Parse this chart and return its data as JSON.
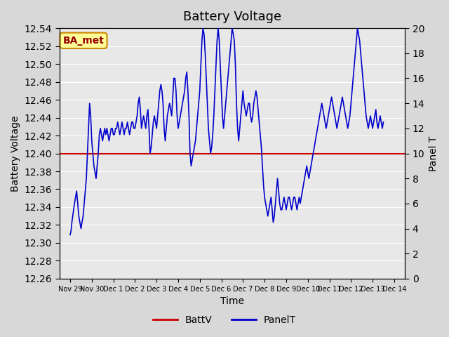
{
  "title": "Battery Voltage",
  "xlabel": "Time",
  "ylabel_left": "Battery Voltage",
  "ylabel_right": "Panel T",
  "xlim_days": 15.5,
  "ylim_left": [
    12.26,
    12.54
  ],
  "ylim_right": [
    0,
    20
  ],
  "batt_v_value": 12.4,
  "background_color": "#e8e8e8",
  "plot_bg_color": "#e8e8e8",
  "line_color_batt": "#cc0000",
  "line_color_panel": "#0000cc",
  "annotation_text": "BA_met",
  "annotation_bg": "#ffff99",
  "annotation_border": "#cc8800",
  "annotation_text_color": "#990000",
  "x_tick_labels": [
    "Nov 29",
    "Nov 30",
    "Dec 1",
    "Dec 2",
    "Dec 3",
    "Dec 4",
    "Dec 5",
    "Dec 6",
    "Dec 7",
    "Dec 8",
    "Dec 9",
    "Dec 10",
    "Dec 11",
    "Dec 12",
    "Dec 13",
    "Dec 14"
  ],
  "yticks_left": [
    12.26,
    12.28,
    12.3,
    12.32,
    12.34,
    12.36,
    12.38,
    12.4,
    12.42,
    12.44,
    12.46,
    12.48,
    12.5,
    12.52,
    12.54
  ],
  "yticks_right": [
    0,
    2,
    4,
    6,
    8,
    10,
    12,
    14,
    16,
    18,
    20
  ],
  "panel_t_data": {
    "x": [
      0,
      0.04,
      0.08,
      0.12,
      0.16,
      0.2,
      0.25,
      0.3,
      0.35,
      0.4,
      0.45,
      0.5,
      0.55,
      0.6,
      0.65,
      0.7,
      0.75,
      0.8,
      0.85,
      0.9,
      0.95,
      1.0,
      1.05,
      1.1,
      1.15,
      1.2,
      1.25,
      1.3,
      1.35,
      1.4,
      1.45,
      1.5,
      1.55,
      1.6,
      1.65,
      1.7,
      1.75,
      1.8,
      1.85,
      1.9,
      1.95,
      2.0,
      2.05,
      2.1,
      2.15,
      2.2,
      2.25,
      2.3,
      2.35,
      2.4,
      2.45,
      2.5,
      2.55,
      2.6,
      2.65,
      2.7,
      2.75,
      2.8,
      2.85,
      2.9,
      2.95,
      3.0,
      3.05,
      3.1,
      3.15,
      3.2,
      3.25,
      3.3,
      3.35,
      3.4,
      3.45,
      3.5,
      3.55,
      3.6,
      3.65,
      3.7,
      3.75,
      3.8,
      3.85,
      3.9,
      3.95,
      4.0,
      4.05,
      4.1,
      4.15,
      4.2,
      4.25,
      4.3,
      4.35,
      4.4,
      4.45,
      4.5,
      4.55,
      4.6,
      4.65,
      4.7,
      4.75,
      4.8,
      4.85,
      4.9,
      4.95,
      5.0,
      5.05,
      5.1,
      5.15,
      5.2,
      5.25,
      5.3,
      5.35,
      5.4,
      5.45,
      5.5,
      5.55,
      5.6,
      5.65,
      5.7,
      5.75,
      5.8,
      5.85,
      5.9,
      5.95,
      6.0,
      6.05,
      6.1,
      6.15,
      6.2,
      6.25,
      6.3,
      6.35,
      6.4,
      6.45,
      6.5,
      6.55,
      6.6,
      6.65,
      6.7,
      6.75,
      6.8,
      6.85,
      6.9,
      6.95,
      7.0,
      7.05,
      7.1,
      7.15,
      7.2,
      7.25,
      7.3,
      7.35,
      7.4,
      7.45,
      7.5,
      7.55,
      7.6,
      7.65,
      7.7,
      7.75,
      7.8,
      7.85,
      7.9,
      7.95,
      8.0,
      8.05,
      8.1,
      8.15,
      8.2,
      8.25,
      8.3,
      8.35,
      8.4,
      8.45,
      8.5,
      8.55,
      8.6,
      8.65,
      8.7,
      8.75,
      8.8,
      8.85,
      8.9,
      8.95,
      9.0,
      9.05,
      9.1,
      9.15,
      9.2,
      9.25,
      9.3,
      9.35,
      9.4,
      9.45,
      9.5,
      9.55,
      9.6,
      9.65,
      9.7,
      9.75,
      9.8,
      9.85,
      9.9,
      9.95,
      10.0,
      10.05,
      10.1,
      10.15,
      10.2,
      10.25,
      10.3,
      10.35,
      10.4,
      10.45,
      10.5,
      10.55,
      10.6,
      10.65,
      10.7,
      10.75,
      10.8,
      10.85,
      10.9,
      10.95,
      11.0,
      11.05,
      11.1,
      11.15,
      11.2,
      11.25,
      11.3,
      11.35,
      11.4,
      11.45,
      11.5,
      11.55,
      11.6,
      11.65,
      11.7,
      11.75,
      11.8,
      11.85,
      11.9,
      11.95,
      12.0,
      12.05,
      12.1,
      12.15,
      12.2,
      12.25,
      12.3,
      12.35,
      12.4,
      12.45,
      12.5,
      12.55,
      12.6,
      12.65,
      12.7,
      12.75,
      12.8,
      12.85,
      12.9,
      12.95,
      13.0,
      13.05,
      13.1,
      13.15,
      13.2,
      13.25,
      13.3,
      13.35,
      13.4,
      13.45,
      13.5,
      13.55,
      13.6,
      13.65,
      13.7,
      13.75,
      13.8,
      13.85,
      13.9,
      13.95,
      14.0,
      14.05,
      14.1,
      14.15,
      14.2,
      14.25,
      14.3,
      14.35,
      14.4,
      14.45,
      14.5
    ],
    "y": [
      3.5,
      3.8,
      4.5,
      5.0,
      5.5,
      6.0,
      6.5,
      7.0,
      6.0,
      5.0,
      4.5,
      4.0,
      4.5,
      5.0,
      6.0,
      7.0,
      8.0,
      10.0,
      12.0,
      14.0,
      13.0,
      11.0,
      10.0,
      9.0,
      8.5,
      8.0,
      9.0,
      10.0,
      11.5,
      12.0,
      11.5,
      11.0,
      11.5,
      12.0,
      11.5,
      12.0,
      11.5,
      11.0,
      11.5,
      12.0,
      12.0,
      11.5,
      11.5,
      12.0,
      12.0,
      12.5,
      12.0,
      11.5,
      12.0,
      12.5,
      12.0,
      11.5,
      12.0,
      12.0,
      12.5,
      12.0,
      11.5,
      12.0,
      12.5,
      12.5,
      12.0,
      12.0,
      12.5,
      13.0,
      14.0,
      14.5,
      13.5,
      12.0,
      12.5,
      13.0,
      12.5,
      12.0,
      13.0,
      13.5,
      12.0,
      10.0,
      10.5,
      11.5,
      12.5,
      13.0,
      12.5,
      12.0,
      13.0,
      14.0,
      15.0,
      15.5,
      15.0,
      14.0,
      12.0,
      11.0,
      12.0,
      13.0,
      13.5,
      14.0,
      13.5,
      13.0,
      14.5,
      16.0,
      16.0,
      15.0,
      13.0,
      12.0,
      12.5,
      13.0,
      13.5,
      14.0,
      14.5,
      15.0,
      16.0,
      16.5,
      15.0,
      13.0,
      10.0,
      9.0,
      9.5,
      10.0,
      10.5,
      11.0,
      12.0,
      13.0,
      14.0,
      15.0,
      17.0,
      19.0,
      20.0,
      19.5,
      18.0,
      16.0,
      14.0,
      12.0,
      11.0,
      10.0,
      10.5,
      11.5,
      13.0,
      15.0,
      17.0,
      19.0,
      20.0,
      19.0,
      17.0,
      15.0,
      13.0,
      12.0,
      13.0,
      14.0,
      15.0,
      16.0,
      17.0,
      18.0,
      19.0,
      20.0,
      19.5,
      19.0,
      17.0,
      14.0,
      12.0,
      11.0,
      12.0,
      13.0,
      14.0,
      15.0,
      14.0,
      13.5,
      13.0,
      13.5,
      14.0,
      14.0,
      13.0,
      12.5,
      13.0,
      14.0,
      14.5,
      15.0,
      14.5,
      13.5,
      12.5,
      11.5,
      10.5,
      9.0,
      7.5,
      6.5,
      6.0,
      5.5,
      5.0,
      5.5,
      6.0,
      6.5,
      5.5,
      4.5,
      5.0,
      6.0,
      7.0,
      8.0,
      7.0,
      6.0,
      5.5,
      5.5,
      6.0,
      6.5,
      6.0,
      5.5,
      6.0,
      6.5,
      6.5,
      6.0,
      5.5,
      6.0,
      6.5,
      6.5,
      6.0,
      5.5,
      6.0,
      6.5,
      6.0,
      6.5,
      7.0,
      7.5,
      8.0,
      8.5,
      9.0,
      8.5,
      8.0,
      8.5,
      9.0,
      9.5,
      10.0,
      10.5,
      11.0,
      11.5,
      12.0,
      12.5,
      13.0,
      13.5,
      14.0,
      13.5,
      13.0,
      12.5,
      12.0,
      12.5,
      13.0,
      13.5,
      14.0,
      14.5,
      14.0,
      13.5,
      13.0,
      12.5,
      12.0,
      12.5,
      13.0,
      13.5,
      14.0,
      14.5,
      14.0,
      13.5,
      13.0,
      12.5,
      12.0,
      12.5,
      13.0,
      14.0,
      15.0,
      16.0,
      17.0,
      18.0,
      19.0,
      20.0,
      19.5,
      19.0,
      18.0,
      17.0,
      16.0,
      15.0,
      14.0,
      13.0,
      12.5,
      12.0,
      12.5,
      13.0,
      12.5,
      12.0,
      12.5,
      13.0,
      13.5,
      12.5,
      12.0,
      12.5,
      13.0,
      12.5,
      12.0,
      12.5
    ]
  }
}
